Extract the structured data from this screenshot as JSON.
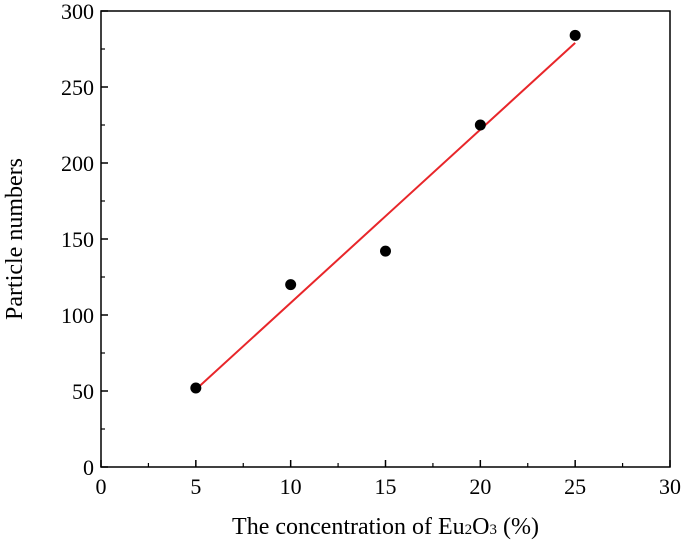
{
  "chart_data": {
    "type": "scatter",
    "title": "",
    "xlabel": {
      "parts": [
        {
          "text": "The concentration of Eu",
          "sub": false
        },
        {
          "text": "2",
          "sub": true
        },
        {
          "text": "O",
          "sub": false
        },
        {
          "text": "3",
          "sub": true
        },
        {
          "text": " (%)",
          "sub": false
        }
      ]
    },
    "ylabel": "Particle numbers",
    "xlim": [
      0,
      30
    ],
    "ylim": [
      0,
      300
    ],
    "x_ticks": [
      0,
      5,
      10,
      15,
      20,
      25,
      30
    ],
    "y_ticks": [
      0,
      50,
      100,
      150,
      200,
      250,
      300
    ],
    "grid": false,
    "series": [
      {
        "type": "scatter",
        "color": "#000000",
        "points": [
          {
            "x": 5,
            "y": 52
          },
          {
            "x": 10,
            "y": 120
          },
          {
            "x": 15,
            "y": 142
          },
          {
            "x": 20,
            "y": 225
          },
          {
            "x": 25,
            "y": 284
          }
        ]
      },
      {
        "type": "line",
        "color": "#e8262a",
        "points": [
          {
            "x": 5,
            "y": 51
          },
          {
            "x": 25,
            "y": 279
          }
        ]
      }
    ]
  }
}
